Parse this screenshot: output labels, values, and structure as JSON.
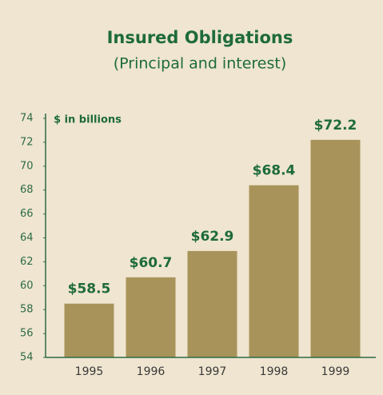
{
  "chart_data": {
    "type": "bar",
    "title": "Insured Obligations",
    "subtitle": "(Principal and interest)",
    "y_label": "$ in billions",
    "categories": [
      "1995",
      "1996",
      "1997",
      "1998",
      "1999"
    ],
    "values": [
      58.5,
      60.7,
      62.9,
      68.4,
      72.2
    ],
    "value_labels": [
      "$58.5",
      "$60.7",
      "$62.9",
      "$68.4",
      "$72.2"
    ],
    "color": "#a8945a",
    "ylim": [
      54,
      74
    ],
    "yticks": [
      54,
      56,
      58,
      60,
      62,
      64,
      66,
      68,
      70,
      72,
      74
    ],
    "grid": false
  }
}
